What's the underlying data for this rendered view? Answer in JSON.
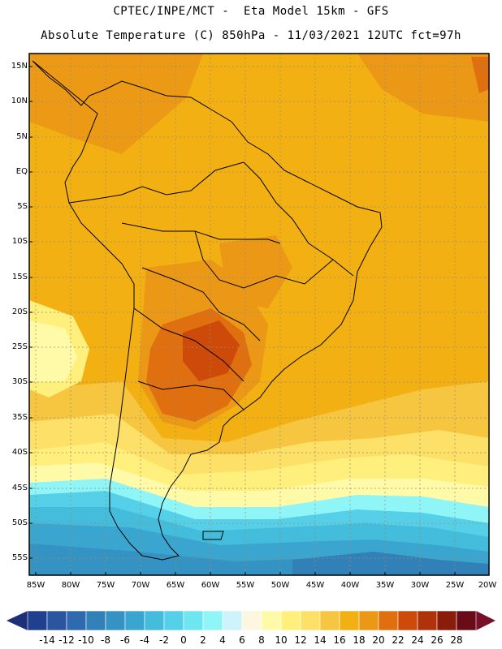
{
  "title": {
    "line1": "CPTEC/INPE/MCT -  Eta Model 15km - GFS",
    "line2": "Absolute Temperature (C) 850hPa - 11/03/2021 12UTC fct=97h"
  },
  "latitude_labels": [
    "15N",
    "10N",
    "5N",
    "EQ",
    "5S",
    "10S",
    "15S",
    "20S",
    "25S",
    "30S",
    "35S",
    "40S",
    "45S",
    "50S",
    "55S"
  ],
  "longitude_labels": [
    "85W",
    "80W",
    "75W",
    "70W",
    "65W",
    "60W",
    "55W",
    "50W",
    "45W",
    "40W",
    "35W",
    "30W",
    "25W",
    "20W"
  ],
  "colorbar": {
    "ticks": [
      "-14",
      "-12",
      "-10",
      "-8",
      "-6",
      "-4",
      "-2",
      "0",
      "2",
      "4",
      "6",
      "8",
      "10",
      "12",
      "14",
      "16",
      "18",
      "20",
      "22",
      "24",
      "26",
      "28"
    ],
    "colors": [
      "#1f3f8f",
      "#2a55a0",
      "#2f6aaf",
      "#3180b8",
      "#3593c4",
      "#3aa6cf",
      "#44bcdc",
      "#55d0e8",
      "#6ee6f2",
      "#8ff5f7",
      "#cdf3fb",
      "#fdf7e0",
      "#fffaa8",
      "#fff07e",
      "#fde067",
      "#f6c640",
      "#f3b012",
      "#eb9816",
      "#e06f10",
      "#cd4a0a",
      "#b0320a",
      "#8a1c0c",
      "#6a0c18"
    ],
    "left_arrow_color": "#1c2f78",
    "right_arrow_color": "#78102a"
  }
}
